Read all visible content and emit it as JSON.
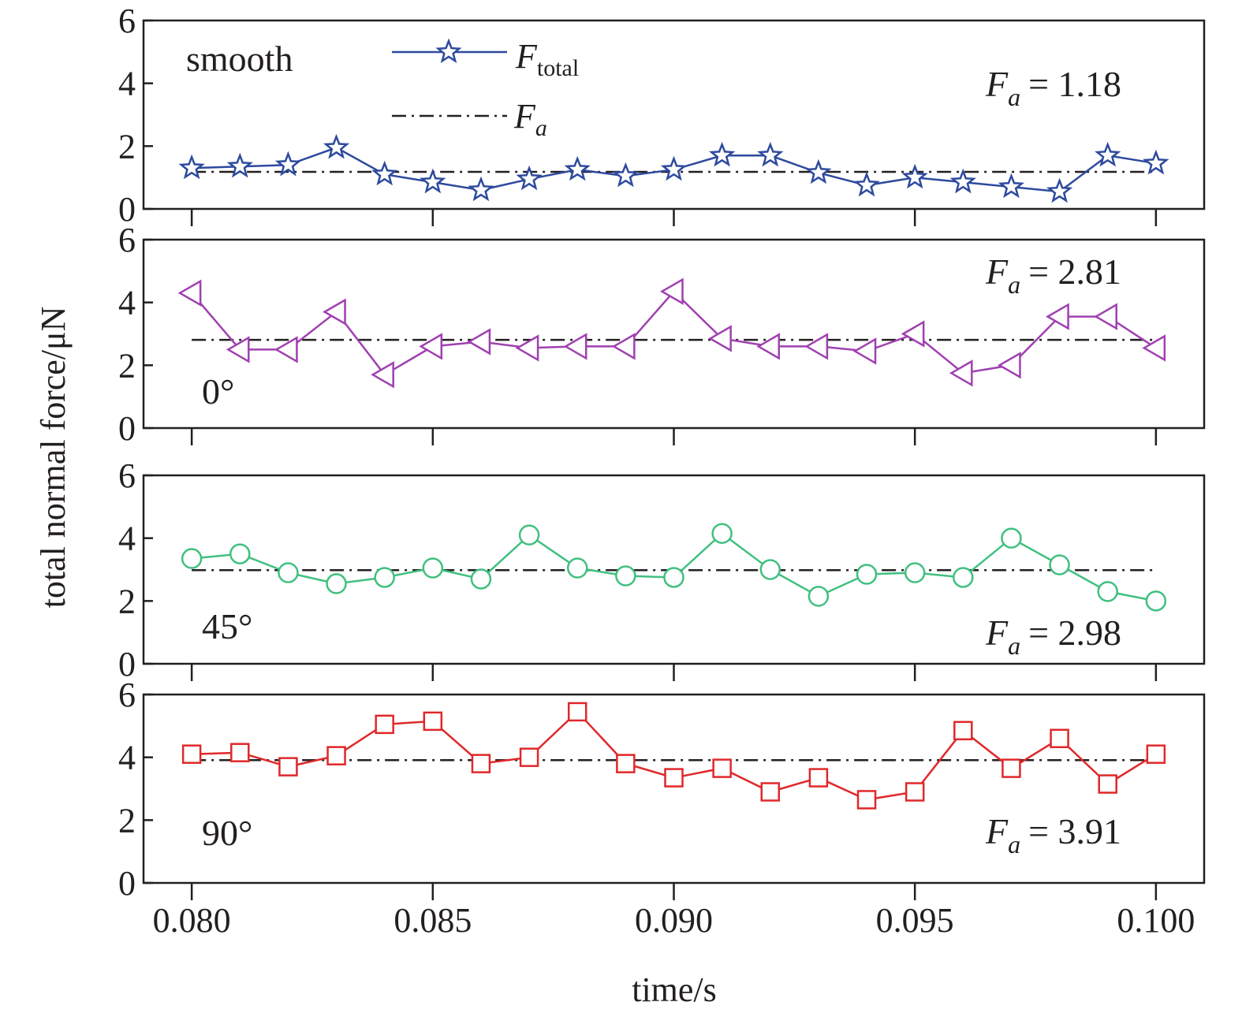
{
  "ylabel": "total normal force/μN",
  "xlabel": "time/s",
  "legend": {
    "total_main": "F",
    "total_sub": "total",
    "avg_main": "F",
    "avg_sub": "a"
  },
  "chart_data": {
    "type": "line",
    "x": [
      0.08,
      0.081,
      0.082,
      0.083,
      0.084,
      0.085,
      0.086,
      0.087,
      0.088,
      0.089,
      0.09,
      0.091,
      0.092,
      0.093,
      0.094,
      0.095,
      0.096,
      0.097,
      0.098,
      0.099,
      0.1
    ],
    "x_ticks": [
      "0.080",
      "0.085",
      "0.090",
      "0.095",
      "0.100"
    ],
    "xlim": [
      0.079,
      0.101
    ],
    "ylim": [
      0,
      6
    ],
    "y_ticks": [
      "0",
      "2",
      "4",
      "6"
    ],
    "grid": false,
    "legend_position": "top-center of first panel",
    "panels": [
      {
        "label": "smooth",
        "fa_text": "= 1.18",
        "fa_value": 1.18,
        "color": "#2e4a9e",
        "marker": "star",
        "values": [
          1.3,
          1.35,
          1.4,
          1.95,
          1.1,
          0.85,
          0.6,
          0.95,
          1.25,
          1.05,
          1.25,
          1.7,
          1.7,
          1.15,
          0.75,
          1.0,
          0.85,
          0.7,
          0.55,
          1.7,
          1.45
        ]
      },
      {
        "label": "0°",
        "fa_text": "= 2.81",
        "fa_value": 2.81,
        "color": "#a040b0",
        "marker": "triangle-left",
        "values": [
          4.3,
          2.5,
          2.5,
          3.7,
          1.7,
          2.6,
          2.75,
          2.55,
          2.6,
          2.6,
          4.35,
          2.85,
          2.6,
          2.6,
          2.45,
          3.0,
          1.75,
          2.0,
          3.55,
          3.55,
          2.55
        ]
      },
      {
        "label": "45°",
        "fa_text": "= 2.98",
        "fa_value": 2.98,
        "color": "#40c080",
        "marker": "circle",
        "values": [
          3.35,
          3.5,
          2.9,
          2.55,
          2.75,
          3.05,
          2.7,
          4.1,
          3.05,
          2.8,
          2.75,
          4.15,
          3.0,
          2.15,
          2.85,
          2.9,
          2.75,
          4.0,
          3.15,
          2.3,
          2.0
        ]
      },
      {
        "label": "90°",
        "fa_text": "= 3.91",
        "fa_value": 3.91,
        "color": "#e0282a",
        "marker": "square",
        "values": [
          4.1,
          4.15,
          3.7,
          4.05,
          5.05,
          5.15,
          3.8,
          4.0,
          5.45,
          3.8,
          3.35,
          3.65,
          2.9,
          3.35,
          2.65,
          2.9,
          4.85,
          3.65,
          4.6,
          3.15,
          4.1
        ]
      }
    ]
  }
}
